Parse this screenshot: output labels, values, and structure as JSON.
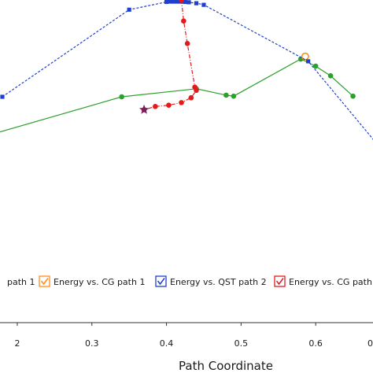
{
  "chart_data": {
    "type": "line",
    "xlabel": "Path Coordinate",
    "xlim": [
      0.18,
      0.68
    ],
    "ylim": [
      0,
      1
    ],
    "grid": false,
    "legend_placement": "bottom",
    "x_ticks": [
      "2",
      "0.3",
      "0.4",
      "0.5",
      "0.6",
      "0"
    ],
    "series": [
      {
        "id": "qst1",
        "color": "#2ca02c",
        "marker": "circle",
        "line": "solid",
        "points": [
          [
            0.16,
            0.58
          ],
          [
            0.34,
            0.7
          ],
          [
            0.44,
            0.725
          ],
          [
            0.48,
            0.705
          ],
          [
            0.49,
            0.702
          ],
          [
            0.58,
            0.817
          ],
          [
            0.6,
            0.795
          ],
          [
            0.62,
            0.765
          ],
          [
            0.65,
            0.702
          ]
        ]
      },
      {
        "id": "cg1",
        "color": "#ff8c1a",
        "marker": "circle-open",
        "line": "none",
        "points": [
          [
            0.586,
            0.825
          ]
        ]
      },
      {
        "id": "qst2",
        "color": "#1f3fcf",
        "marker": "square",
        "line": "dashed",
        "points": [
          [
            0.18,
            0.7
          ],
          [
            0.35,
            0.97
          ],
          [
            0.4,
            0.994
          ],
          [
            0.405,
            0.995
          ],
          [
            0.41,
            0.995
          ],
          [
            0.415,
            0.995
          ],
          [
            0.42,
            0.995
          ],
          [
            0.425,
            0.994
          ],
          [
            0.43,
            0.993
          ],
          [
            0.44,
            0.99
          ],
          [
            0.45,
            0.985
          ],
          [
            0.59,
            0.81
          ],
          [
            0.68,
            0.56
          ]
        ]
      },
      {
        "id": "cg2",
        "color": "#e31a1c",
        "marker": "circle",
        "line": "dashdot",
        "points": [
          [
            0.42,
            1.0
          ],
          [
            0.423,
            0.935
          ],
          [
            0.428,
            0.865
          ],
          [
            0.438,
            0.73
          ],
          [
            0.44,
            0.72
          ],
          [
            0.433,
            0.697
          ],
          [
            0.42,
            0.682
          ],
          [
            0.403,
            0.674
          ],
          [
            0.385,
            0.67
          ],
          [
            0.37,
            0.66
          ]
        ]
      },
      {
        "id": "ts-marker",
        "color": "#7a1f5c",
        "marker": "star",
        "line": "none",
        "points": [
          [
            0.37,
            0.66
          ]
        ]
      }
    ]
  },
  "legend": [
    {
      "label": "path 1",
      "color": "#2ca02c"
    },
    {
      "label": "Energy vs. CG path 1",
      "color": "#ff8c1a"
    },
    {
      "label": "Energy vs. QST path 2",
      "color": "#1f3fcf"
    },
    {
      "label": "Energy vs. CG path",
      "color": "#e31a1c"
    }
  ]
}
